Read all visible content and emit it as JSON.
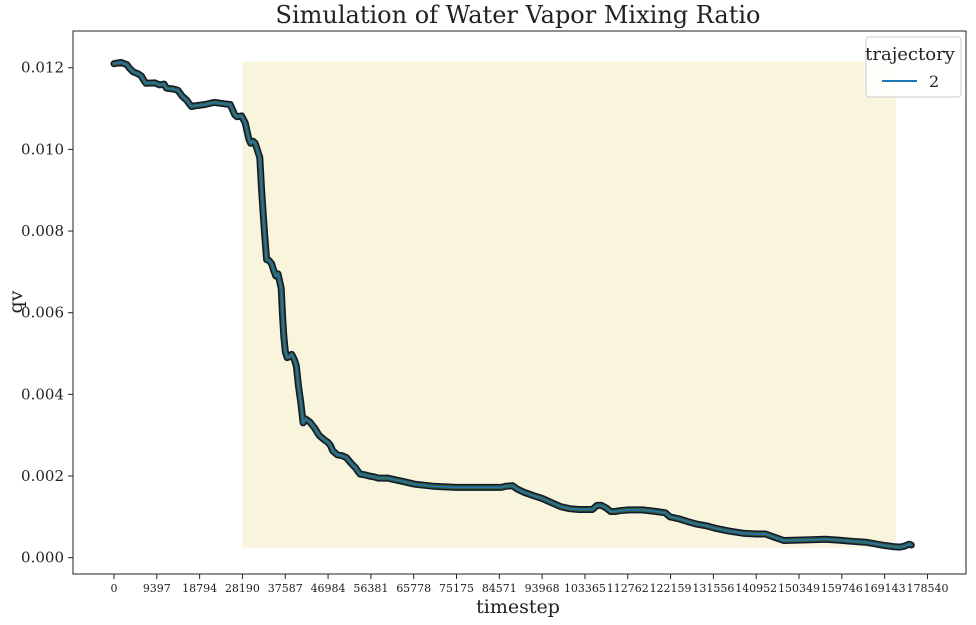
{
  "chart_data": {
    "type": "line",
    "title": "Simulation of Water Vapor Mixing Ratio",
    "xlabel": "timestep",
    "ylabel": "qv",
    "xlim": [
      -9000,
      187000
    ],
    "ylim": [
      -0.0004,
      0.0129
    ],
    "x_ticks": [
      0,
      9397,
      18794,
      28190,
      37587,
      46984,
      56381,
      65778,
      75175,
      84571,
      93968,
      103365,
      112762,
      122159,
      131556,
      140952,
      150349,
      159746,
      169143,
      178540
    ],
    "y_ticks": [
      0.0,
      0.002,
      0.004,
      0.006,
      0.008,
      0.01,
      0.012
    ],
    "y_tick_labels": [
      "0.000",
      "0.002",
      "0.004",
      "0.006",
      "0.008",
      "0.010",
      "0.012"
    ],
    "grid": false,
    "legend": {
      "title": "trajectory",
      "placement": "top-right",
      "entries": [
        "2"
      ]
    },
    "highlight_region": {
      "x": [
        28190,
        171600
      ],
      "y": [
        0.00025,
        0.01215
      ],
      "color": "#f9f5dc"
    },
    "colors": {
      "series_line": "#1f77b4",
      "series_outline": "#0d1a2e",
      "series_fill": "#3b5a3c"
    },
    "series": [
      {
        "name": "2",
        "x": [
          0,
          1500,
          2800,
          3300,
          4200,
          5300,
          6000,
          6500,
          7000,
          9000,
          10000,
          11000,
          11500,
          13000,
          14000,
          15000,
          16000,
          16500,
          17000,
          18000,
          20000,
          22000,
          24000,
          25500,
          26500,
          27000,
          28000,
          28800,
          29300,
          29600,
          30000,
          30500,
          31000,
          32000,
          32400,
          33000,
          33500,
          34000,
          34600,
          35000,
          35500,
          36000,
          36700,
          37000,
          37300,
          37600,
          38000,
          38500,
          39000,
          39600,
          40000,
          40500,
          41000,
          41500,
          42000,
          43000,
          43500,
          44000,
          45000,
          46000,
          47000,
          47500,
          48000,
          49000,
          50000,
          51000,
          52000,
          53000,
          53500,
          54000,
          55000,
          56000,
          57000,
          58000,
          60000,
          62000,
          64000,
          66000,
          70000,
          75000,
          80000,
          85000,
          86000,
          87500,
          88500,
          90000,
          92000,
          94000,
          96000,
          98000,
          100000,
          102000,
          105000,
          106000,
          107000,
          108000,
          109000,
          110000,
          111000,
          113000,
          116000,
          119000,
          121000,
          122000,
          124000,
          126000,
          128000,
          130000,
          132000,
          135000,
          138000,
          141000,
          143000,
          145000,
          147000,
          150000,
          153000,
          156000,
          159000,
          162000,
          165000,
          167000,
          169000,
          171000,
          172500,
          173500,
          174500,
          175000
        ],
        "y": [
          0.0121,
          0.01213,
          0.01208,
          0.012,
          0.0119,
          0.01185,
          0.0118,
          0.0117,
          0.01162,
          0.01163,
          0.01158,
          0.0116,
          0.0115,
          0.01148,
          0.01145,
          0.0113,
          0.0112,
          0.01112,
          0.01105,
          0.01107,
          0.0111,
          0.01115,
          0.01112,
          0.0111,
          0.01085,
          0.0108,
          0.01082,
          0.01065,
          0.0104,
          0.01025,
          0.01015,
          0.0102,
          0.01015,
          0.0098,
          0.009,
          0.008,
          0.0073,
          0.00728,
          0.0072,
          0.00705,
          0.0069,
          0.00695,
          0.0066,
          0.0059,
          0.0054,
          0.00505,
          0.0049,
          0.00492,
          0.00498,
          0.00485,
          0.0047,
          0.0042,
          0.0038,
          0.0033,
          0.0034,
          0.00332,
          0.00325,
          0.00318,
          0.003,
          0.0029,
          0.00282,
          0.00275,
          0.00262,
          0.00252,
          0.0025,
          0.00245,
          0.00232,
          0.0022,
          0.00212,
          0.00205,
          0.00203,
          0.002,
          0.00198,
          0.00195,
          0.00195,
          0.0019,
          0.00185,
          0.0018,
          0.00175,
          0.00172,
          0.00172,
          0.00172,
          0.00175,
          0.00176,
          0.00168,
          0.0016,
          0.00152,
          0.00145,
          0.00135,
          0.00125,
          0.0012,
          0.00118,
          0.00118,
          0.00128,
          0.00128,
          0.00122,
          0.00113,
          0.00113,
          0.00115,
          0.00117,
          0.00117,
          0.00113,
          0.0011,
          0.001,
          0.00095,
          0.00088,
          0.00082,
          0.00078,
          0.00072,
          0.00065,
          0.0006,
          0.00058,
          0.00058,
          0.0005,
          0.00042,
          0.00043,
          0.00044,
          0.00045,
          0.00043,
          0.0004,
          0.00038,
          0.00034,
          0.0003,
          0.00027,
          0.00026,
          0.00028,
          0.00033,
          0.00031
        ]
      }
    ]
  }
}
